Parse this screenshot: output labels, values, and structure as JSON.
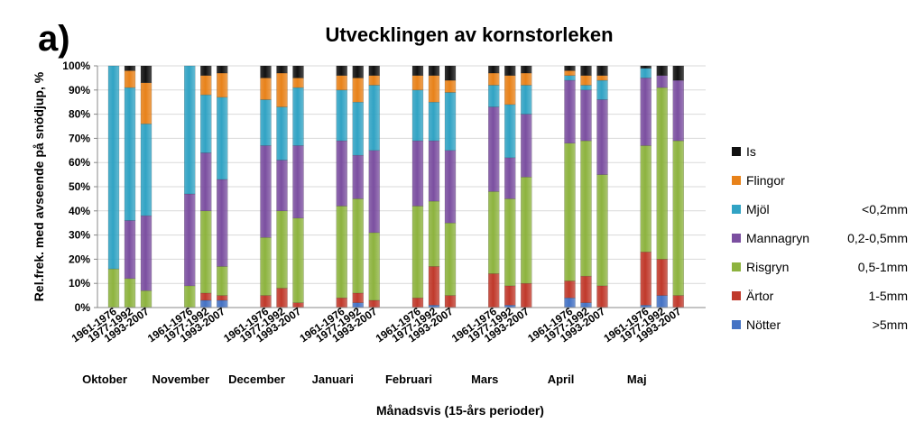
{
  "panel_label": "a)",
  "chart_data": {
    "type": "bar",
    "stacked": true,
    "title": "Utvecklingen av kornstorleken",
    "xlabel": "Månadsvis (15-års perioder)",
    "ylabel": "Rel.frek. med avseende på snödjup, %",
    "ylim": [
      0,
      100
    ],
    "yticks": [
      "0%",
      "10%",
      "20%",
      "30%",
      "40%",
      "50%",
      "60%",
      "70%",
      "80%",
      "90%",
      "100%"
    ],
    "months": [
      "Oktober",
      "November",
      "December",
      "Januari",
      "Februari",
      "Mars",
      "April",
      "Maj"
    ],
    "periods": [
      "1961-1976",
      "1977-1992",
      "1993-2007"
    ],
    "legend_position": "right",
    "series": [
      {
        "name": "Nötter",
        "size": ">5mm",
        "color": "#4472c4",
        "values": [
          [
            0,
            0,
            0
          ],
          [
            0,
            3,
            3
          ],
          [
            0,
            0,
            0
          ],
          [
            0,
            2,
            0
          ],
          [
            0,
            1,
            0
          ],
          [
            0,
            1,
            0
          ],
          [
            4,
            2,
            0
          ],
          [
            1,
            5,
            0
          ]
        ]
      },
      {
        "name": "Ärtor",
        "size": "1-5mm",
        "color": "#c0392b",
        "values": [
          [
            0,
            0,
            0
          ],
          [
            0,
            3,
            2
          ],
          [
            5,
            8,
            2
          ],
          [
            4,
            4,
            3
          ],
          [
            4,
            16,
            5
          ],
          [
            14,
            8,
            10
          ],
          [
            7,
            11,
            9
          ],
          [
            22,
            15,
            5
          ]
        ]
      },
      {
        "name": "Risgryn",
        "size": "0,5-1mm",
        "color": "#8db33f",
        "values": [
          [
            16,
            12,
            7
          ],
          [
            9,
            34,
            12
          ],
          [
            24,
            32,
            35
          ],
          [
            38,
            39,
            28
          ],
          [
            38,
            27,
            30
          ],
          [
            34,
            36,
            44
          ],
          [
            57,
            56,
            46
          ],
          [
            44,
            71,
            64
          ]
        ]
      },
      {
        "name": "Mannagryn",
        "size": "0,2-0,5mm",
        "color": "#7b4fa0",
        "values": [
          [
            0,
            24,
            31
          ],
          [
            38,
            24,
            36
          ],
          [
            38,
            21,
            30
          ],
          [
            27,
            18,
            34
          ],
          [
            27,
            25,
            30
          ],
          [
            35,
            17,
            26
          ],
          [
            26,
            21,
            31
          ],
          [
            28,
            5,
            25
          ]
        ]
      },
      {
        "name": "Mjöl",
        "size": "<0,2mm",
        "color": "#31a3c4",
        "values": [
          [
            84,
            55,
            38
          ],
          [
            53,
            24,
            34
          ],
          [
            19,
            22,
            24
          ],
          [
            21,
            22,
            27
          ],
          [
            21,
            16,
            24
          ],
          [
            9,
            22,
            12
          ],
          [
            2,
            2,
            8
          ],
          [
            4,
            0,
            0
          ]
        ]
      },
      {
        "name": "Flingor",
        "size": "",
        "color": "#e8821a",
        "values": [
          [
            0,
            7,
            17
          ],
          [
            0,
            8,
            10
          ],
          [
            9,
            14,
            4
          ],
          [
            6,
            10,
            4
          ],
          [
            6,
            11,
            5
          ],
          [
            5,
            12,
            5
          ],
          [
            2,
            4,
            2
          ],
          [
            0,
            0,
            0
          ]
        ]
      },
      {
        "name": "Is",
        "size": "",
        "color": "#111111",
        "values": [
          [
            0,
            2,
            7
          ],
          [
            0,
            4,
            3
          ],
          [
            5,
            3,
            5
          ],
          [
            4,
            5,
            4
          ],
          [
            4,
            4,
            6
          ],
          [
            3,
            4,
            3
          ],
          [
            2,
            4,
            4
          ],
          [
            1,
            4,
            6
          ]
        ]
      }
    ]
  }
}
